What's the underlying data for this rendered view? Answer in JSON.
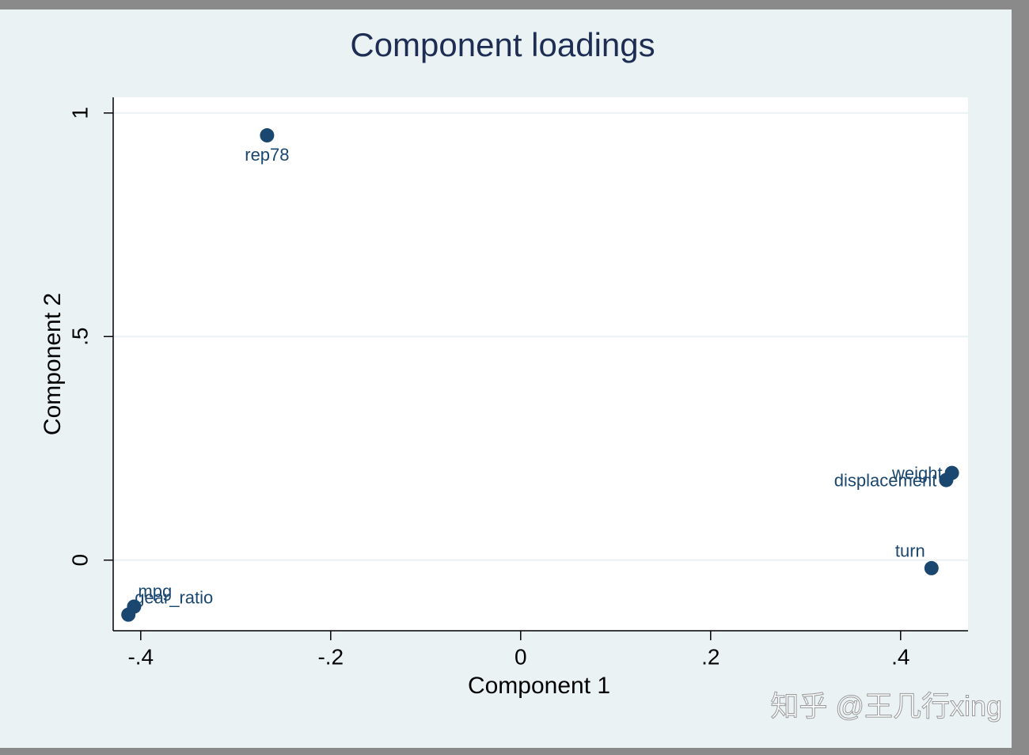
{
  "chart_data": {
    "type": "scatter",
    "title": "Component loadings",
    "x_label": "Component 1",
    "y_label": "Component 2",
    "color": "#1a476f",
    "labels": [
      "rep78",
      "weight",
      "displacement",
      "turn",
      "mpg",
      "gear_ratio"
    ],
    "x": [
      -0.267,
      0.454,
      0.448,
      0.4325,
      -0.407,
      -0.413
    ],
    "y": [
      0.95,
      0.195,
      0.179,
      -0.018,
      -0.104,
      -0.122
    ],
    "xlim": [
      -0.429,
      0.471
    ],
    "ylim": [
      -0.158,
      1.035
    ],
    "xticks": [
      {
        "value": -0.4,
        "label": "-.4"
      },
      {
        "value": -0.2,
        "label": "-.2"
      },
      0,
      {
        "value": 0.2,
        "label": ".2"
      },
      {
        "value": 0.4,
        "label": ".4"
      }
    ],
    "yticks": [
      0,
      {
        "value": 0.5,
        "label": ".5"
      },
      1
    ],
    "grid": true
  },
  "watermark": "知乎 @王几行xing"
}
